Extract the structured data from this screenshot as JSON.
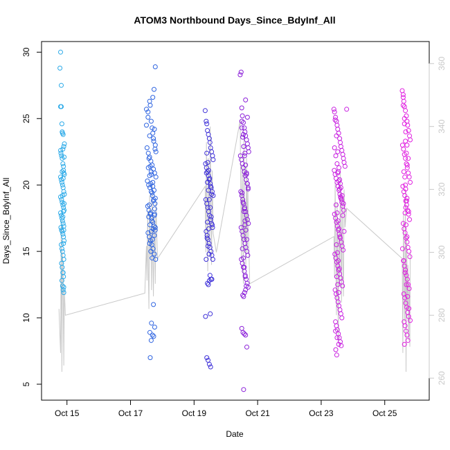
{
  "chart_data": {
    "type": "scatter",
    "title": "ATOM3 Northbound Days_Since_BdyInf_All",
    "xlabel": "Date",
    "ylabel": "Days_Since_BdyInf_All",
    "x_ticks": [
      "Oct 15",
      "Oct 17",
      "Oct 19",
      "Oct 21",
      "Oct 23",
      "Oct 25"
    ],
    "x_tick_values": [
      15,
      17,
      19,
      21,
      23,
      25
    ],
    "xlim": [
      14.2,
      26.4
    ],
    "ylim": [
      3.8,
      30.8
    ],
    "y_ticks": [
      5,
      10,
      15,
      20,
      25,
      30
    ],
    "y2lim": [
      253,
      367
    ],
    "y2_ticks": [
      260,
      280,
      300,
      320,
      340,
      360
    ],
    "grid": false,
    "colors": {
      "cluster_1": "#29a9e8",
      "cluster_2": "#2d63e0",
      "cluster_3": "#3d2fd8",
      "cluster_4": "#8a1ed8",
      "cluster_5": "#c81ee0",
      "cluster_6": "#e01ee0",
      "line": "#c8c8c8",
      "right_axis": "#c8c8c8"
    },
    "series": [
      {
        "color_key": "cluster_1",
        "x": [
          14.78,
          14.8,
          14.8,
          14.82,
          14.82,
          14.84,
          14.85,
          14.86,
          14.88,
          14.9,
          14.8,
          14.81,
          14.83,
          14.85,
          14.87,
          14.89,
          14.9,
          14.92,
          14.8,
          14.82,
          14.84,
          14.86,
          14.88,
          14.9,
          14.92,
          14.8,
          14.83,
          14.85,
          14.87,
          14.89,
          14.91,
          14.8,
          14.82,
          14.84,
          14.86,
          14.88,
          14.9,
          14.81,
          14.83,
          14.85,
          14.87,
          14.89,
          14.91,
          14.82,
          14.84,
          14.86,
          14.88,
          14.9,
          14.83,
          14.85,
          14.87,
          14.89,
          14.84,
          14.86,
          14.88,
          14.9,
          14.85,
          14.87,
          14.89,
          14.86,
          14.88,
          14.9,
          14.87,
          14.89,
          14.91,
          14.88,
          14.9,
          14.92,
          14.89,
          14.91
        ],
        "y": [
          28.8,
          30.0,
          25.9,
          25.9,
          27.5,
          24.6,
          24.0,
          23.9,
          23.8,
          22.9,
          22.6,
          22.4,
          22.2,
          22.0,
          21.6,
          21.1,
          20.9,
          20.8,
          20.6,
          20.4,
          20.2,
          20.0,
          19.8,
          19.5,
          19.3,
          19.1,
          18.9,
          18.7,
          18.5,
          18.3,
          18.1,
          17.9,
          17.7,
          17.5,
          17.3,
          17.1,
          16.9,
          16.8,
          16.6,
          16.5,
          16.3,
          16.1,
          15.8,
          15.5,
          15.2,
          15.0,
          14.7,
          14.4,
          14.1,
          13.8,
          13.4,
          13.1,
          12.8,
          12.4,
          12.1,
          11.9,
          21.0,
          22.7,
          18.0,
          19.2,
          20.5,
          16.6,
          17.6,
          15.6,
          22.1,
          13.4,
          12.3,
          23.1,
          21.4,
          18.6
        ]
      },
      {
        "color_key": "cluster_2",
        "x": [
          17.5,
          17.55,
          17.6,
          17.62,
          17.65,
          17.68,
          17.7,
          17.72,
          17.75,
          17.78,
          17.8,
          17.52,
          17.56,
          17.6,
          17.64,
          17.68,
          17.72,
          17.76,
          17.8,
          17.53,
          17.57,
          17.61,
          17.65,
          17.69,
          17.73,
          17.77,
          17.54,
          17.58,
          17.62,
          17.66,
          17.7,
          17.74,
          17.78,
          17.55,
          17.59,
          17.63,
          17.67,
          17.71,
          17.75,
          17.79,
          17.56,
          17.6,
          17.64,
          17.68,
          17.72,
          17.76,
          17.57,
          17.61,
          17.65,
          17.69,
          17.73,
          17.77,
          17.58,
          17.62,
          17.66,
          17.7,
          17.74,
          17.78,
          17.59,
          17.63,
          17.67,
          17.71,
          17.75,
          17.6,
          17.64,
          17.68,
          17.72,
          17.76,
          17.61,
          17.65,
          17.69,
          17.73,
          17.62,
          17.66,
          17.7,
          17.74,
          17.5,
          17.55,
          17.6,
          17.65,
          17.7,
          17.75,
          17.78,
          17.78,
          17.76
        ],
        "y": [
          25.7,
          25.5,
          26.3,
          26.0,
          24.8,
          24.3,
          23.9,
          23.5,
          24.2,
          23.0,
          22.5,
          22.8,
          22.4,
          22.1,
          21.8,
          21.5,
          21.2,
          20.9,
          20.6,
          20.3,
          20.0,
          19.8,
          19.5,
          19.2,
          18.9,
          18.6,
          18.4,
          18.1,
          17.8,
          17.5,
          17.2,
          16.9,
          16.6,
          16.4,
          16.1,
          15.8,
          15.5,
          15.2,
          14.8,
          14.4,
          21.3,
          20.7,
          20.1,
          19.4,
          18.8,
          18.2,
          17.6,
          17.0,
          16.5,
          15.9,
          23.3,
          22.7,
          22.0,
          21.4,
          20.8,
          20.2,
          19.6,
          19.0,
          18.5,
          17.9,
          17.3,
          16.7,
          16.2,
          15.6,
          15.0,
          14.5,
          11.0,
          9.3,
          8.9,
          8.3,
          8.7,
          8.6,
          7.0,
          9.6,
          26.6,
          27.2,
          24.5,
          25.1,
          23.7,
          21.0,
          19.9,
          17.7,
          28.9,
          16.8,
          17.8
        ]
      },
      {
        "color_key": "cluster_3",
        "x": [
          19.35,
          19.38,
          19.4,
          19.42,
          19.45,
          19.48,
          19.5,
          19.52,
          19.55,
          19.58,
          19.6,
          19.36,
          19.39,
          19.42,
          19.45,
          19.48,
          19.51,
          19.54,
          19.57,
          19.6,
          19.37,
          19.4,
          19.43,
          19.46,
          19.49,
          19.52,
          19.55,
          19.58,
          19.38,
          19.41,
          19.44,
          19.47,
          19.5,
          19.53,
          19.56,
          19.59,
          19.39,
          19.42,
          19.45,
          19.48,
          19.51,
          19.54,
          19.57,
          19.4,
          19.43,
          19.46,
          19.49,
          19.52,
          19.55,
          19.41,
          19.44,
          19.47,
          19.5,
          19.53,
          19.42,
          19.45,
          19.48,
          19.51,
          19.36,
          19.4,
          19.44,
          19.48,
          19.52,
          19.56,
          19.38,
          19.42,
          19.46
        ],
        "y": [
          25.6,
          24.8,
          24.6,
          24.1,
          23.8,
          23.5,
          23.2,
          22.8,
          22.5,
          22.2,
          21.9,
          21.6,
          21.3,
          21.0,
          20.7,
          20.4,
          20.1,
          19.8,
          19.5,
          19.2,
          18.9,
          18.6,
          18.3,
          18.0,
          17.7,
          17.4,
          17.1,
          16.8,
          16.5,
          16.2,
          15.9,
          15.6,
          15.3,
          15.0,
          14.7,
          14.4,
          20.9,
          20.2,
          19.6,
          18.9,
          18.3,
          17.6,
          17.0,
          22.4,
          21.7,
          21.1,
          20.5,
          19.9,
          19.3,
          16.0,
          15.4,
          14.8,
          13.2,
          12.9,
          12.6,
          12.5,
          12.8,
          10.3,
          10.1,
          7.0,
          6.8,
          6.5,
          6.3,
          12.9,
          14.4,
          17.2,
          16.7
        ]
      },
      {
        "color_key": "cluster_4",
        "x": [
          20.45,
          20.48,
          20.5,
          20.52,
          20.55,
          20.58,
          20.6,
          20.62,
          20.65,
          20.68,
          20.7,
          20.72,
          20.46,
          20.49,
          20.52,
          20.55,
          20.58,
          20.61,
          20.64,
          20.67,
          20.7,
          20.47,
          20.5,
          20.53,
          20.56,
          20.59,
          20.62,
          20.65,
          20.68,
          20.71,
          20.48,
          20.51,
          20.54,
          20.57,
          20.6,
          20.63,
          20.66,
          20.69,
          20.49,
          20.52,
          20.55,
          20.58,
          20.61,
          20.64,
          20.67,
          20.7,
          20.5,
          20.53,
          20.56,
          20.59,
          20.62,
          20.65,
          20.68,
          20.51,
          20.54,
          20.57,
          20.6,
          20.63,
          20.66,
          20.52,
          20.55,
          20.58,
          20.61,
          20.64,
          20.53,
          20.56,
          20.59,
          20.62,
          20.5,
          20.54,
          20.58,
          20.62,
          20.66,
          20.5,
          20.55,
          20.6,
          20.65,
          20.7,
          20.58,
          20.6,
          20.62,
          20.68,
          20.56
        ],
        "y": [
          28.3,
          28.5,
          25.8,
          25.2,
          24.7,
          24.3,
          24.0,
          23.7,
          23.4,
          23.1,
          22.8,
          22.5,
          22.2,
          21.9,
          21.6,
          21.3,
          21.0,
          20.7,
          20.4,
          20.1,
          19.8,
          19.5,
          19.2,
          18.9,
          18.6,
          18.3,
          18.0,
          17.7,
          17.4,
          17.1,
          16.8,
          16.5,
          16.2,
          15.9,
          15.6,
          15.3,
          15.0,
          14.7,
          14.4,
          14.1,
          13.8,
          13.5,
          13.2,
          12.9,
          12.6,
          12.3,
          24.3,
          23.6,
          22.9,
          22.2,
          21.5,
          20.8,
          20.1,
          19.4,
          18.7,
          18.0,
          17.3,
          16.6,
          15.9,
          15.2,
          14.5,
          13.8,
          13.1,
          12.4,
          11.7,
          11.6,
          11.9,
          12.1,
          9.2,
          8.9,
          8.8,
          8.7,
          7.8,
          24.8,
          23.8,
          22.4,
          20.9,
          19.7,
          18.2,
          17.0,
          26.4,
          25.1,
          4.6
        ]
      },
      {
        "color_key": "cluster_5",
        "x": [
          23.4,
          23.42,
          23.45,
          23.48,
          23.5,
          23.52,
          23.55,
          23.58,
          23.6,
          23.62,
          23.65,
          23.68,
          23.7,
          23.72,
          23.75,
          23.41,
          23.44,
          23.47,
          23.5,
          23.53,
          23.56,
          23.59,
          23.62,
          23.65,
          23.68,
          23.71,
          23.42,
          23.45,
          23.48,
          23.51,
          23.54,
          23.57,
          23.6,
          23.63,
          23.66,
          23.69,
          23.43,
          23.46,
          23.49,
          23.52,
          23.55,
          23.58,
          23.61,
          23.64,
          23.67,
          23.44,
          23.47,
          23.5,
          23.53,
          23.56,
          23.59,
          23.62,
          23.65,
          23.45,
          23.48,
          23.51,
          23.54,
          23.57,
          23.6,
          23.63,
          23.46,
          23.49,
          23.52,
          23.55,
          23.58,
          23.61,
          23.47,
          23.5,
          23.53,
          23.56,
          23.59,
          23.48,
          23.51,
          23.54,
          23.57,
          23.49,
          23.52,
          23.55,
          23.42,
          23.46,
          23.5,
          23.54,
          23.58,
          23.62,
          23.66,
          23.7,
          23.44,
          23.48,
          23.52,
          23.56,
          23.6,
          23.64,
          23.68,
          23.72,
          23.8,
          23.45,
          23.5,
          23.55
        ],
        "y": [
          25.7,
          25.5,
          25.1,
          24.8,
          24.5,
          24.2,
          23.9,
          23.5,
          23.2,
          22.9,
          22.6,
          22.3,
          22.0,
          21.7,
          21.4,
          21.1,
          20.8,
          20.5,
          20.2,
          19.9,
          19.6,
          19.3,
          19.0,
          18.7,
          18.4,
          18.1,
          17.8,
          17.5,
          17.2,
          16.9,
          16.6,
          16.3,
          16.0,
          15.7,
          15.4,
          15.1,
          14.8,
          14.5,
          14.2,
          13.9,
          13.6,
          13.3,
          13.0,
          12.7,
          12.4,
          12.1,
          11.8,
          11.5,
          11.2,
          10.9,
          10.6,
          10.3,
          10.0,
          9.7,
          9.4,
          9.1,
          8.8,
          8.5,
          8.2,
          7.9,
          7.6,
          7.2,
          20.9,
          20.3,
          19.7,
          19.1,
          18.5,
          17.9,
          17.3,
          16.7,
          16.1,
          15.5,
          14.9,
          14.3,
          13.7,
          13.1,
          12.5,
          11.9,
          22.8,
          22.2,
          21.6,
          21.0,
          20.4,
          19.8,
          19.2,
          18.6,
          24.9,
          23.7,
          22.5,
          21.3,
          20.1,
          18.9,
          17.7,
          16.5,
          25.7,
          9.0,
          8.5,
          8.0
        ]
      },
      {
        "color_key": "cluster_6",
        "x": [
          25.55,
          25.58,
          25.6,
          25.62,
          25.65,
          25.68,
          25.7,
          25.72,
          25.75,
          25.78,
          25.8,
          25.56,
          25.59,
          25.62,
          25.65,
          25.68,
          25.71,
          25.74,
          25.77,
          25.8,
          25.57,
          25.6,
          25.63,
          25.66,
          25.69,
          25.72,
          25.75,
          25.78,
          25.58,
          25.61,
          25.64,
          25.67,
          25.7,
          25.73,
          25.76,
          25.79,
          25.59,
          25.62,
          25.65,
          25.68,
          25.71,
          25.74,
          25.77,
          25.6,
          25.63,
          25.66,
          25.69,
          25.72,
          25.75,
          25.61,
          25.64,
          25.67,
          25.7,
          25.73,
          25.62,
          25.65,
          25.68,
          25.71,
          25.63,
          25.66,
          25.69,
          25.64,
          25.67,
          25.7,
          25.56,
          25.6,
          25.64,
          25.68,
          25.72,
          25.76,
          25.8,
          25.58,
          25.62,
          25.66,
          25.7,
          25.74,
          25.6,
          25.65,
          25.7,
          25.75,
          25.58,
          25.62,
          25.66
        ],
        "y": [
          27.1,
          26.8,
          26.3,
          25.9,
          25.6,
          25.2,
          24.8,
          24.5,
          24.1,
          23.7,
          23.4,
          23.0,
          22.7,
          22.3,
          22.0,
          21.6,
          21.3,
          20.9,
          20.6,
          20.2,
          19.9,
          19.5,
          19.2,
          18.8,
          18.5,
          18.1,
          17.8,
          17.4,
          17.1,
          16.7,
          16.4,
          16.0,
          15.7,
          15.3,
          15.0,
          14.6,
          14.3,
          13.9,
          13.6,
          13.2,
          12.9,
          12.5,
          12.2,
          11.8,
          11.5,
          11.1,
          10.8,
          10.4,
          10.1,
          9.7,
          9.4,
          9.0,
          8.7,
          8.3,
          8.0,
          23.3,
          22.4,
          21.5,
          20.6,
          19.7,
          18.8,
          17.9,
          17.0,
          16.1,
          15.2,
          14.3,
          13.4,
          12.5,
          11.6,
          10.7,
          9.8,
          26.0,
          25.0,
          24.0,
          23.0,
          22.0,
          21.0,
          20.0,
          19.0,
          18.0,
          26.6,
          24.6,
          18.3
        ]
      }
    ],
    "line_x": [
      14.75,
      14.8,
      14.82,
      14.84,
      14.86,
      14.88,
      14.9,
      14.92,
      14.95,
      17.45,
      17.5,
      17.52,
      17.54,
      17.56,
      17.58,
      17.6,
      17.62,
      17.64,
      17.66,
      17.68,
      17.7,
      17.72,
      17.74,
      17.76,
      17.78,
      17.8,
      17.85,
      19.35,
      19.37,
      19.39,
      19.41,
      19.43,
      19.45,
      19.47,
      19.49,
      19.51,
      19.53,
      19.55,
      19.57,
      19.6,
      19.7,
      20.45,
      20.47,
      20.49,
      20.51,
      20.53,
      20.55,
      20.57,
      20.59,
      20.61,
      20.63,
      20.65,
      20.67,
      20.69,
      20.71,
      20.75,
      23.4,
      23.42,
      23.44,
      23.46,
      23.48,
      23.5,
      23.52,
      23.54,
      23.56,
      23.58,
      23.6,
      23.62,
      23.64,
      23.66,
      23.68,
      23.7,
      23.72,
      23.75,
      23.8,
      25.55,
      25.57,
      25.59,
      25.61,
      25.63,
      25.65,
      25.67,
      25.69,
      25.71,
      25.73,
      25.75,
      25.77,
      25.79,
      25.8
    ],
    "line_y2": [
      282,
      268,
      310,
      262,
      300,
      294,
      264,
      288,
      280,
      287,
      302,
      291,
      313,
      296,
      282,
      318,
      299,
      307,
      288,
      322,
      297,
      286,
      312,
      303,
      290,
      316,
      298,
      321,
      300,
      335,
      310,
      294,
      330,
      318,
      302,
      340,
      312,
      296,
      326,
      306,
      300,
      342,
      318,
      298,
      328,
      310,
      290,
      336,
      304,
      312,
      296,
      330,
      300,
      322,
      308,
      290,
      305,
      292,
      322,
      300,
      280,
      316,
      296,
      272,
      310,
      290,
      326,
      302,
      284,
      318,
      298,
      286,
      320,
      308,
      314,
      298,
      268,
      312,
      290,
      278,
      320,
      262,
      306,
      282,
      296,
      272,
      290,
      270,
      300
    ]
  }
}
